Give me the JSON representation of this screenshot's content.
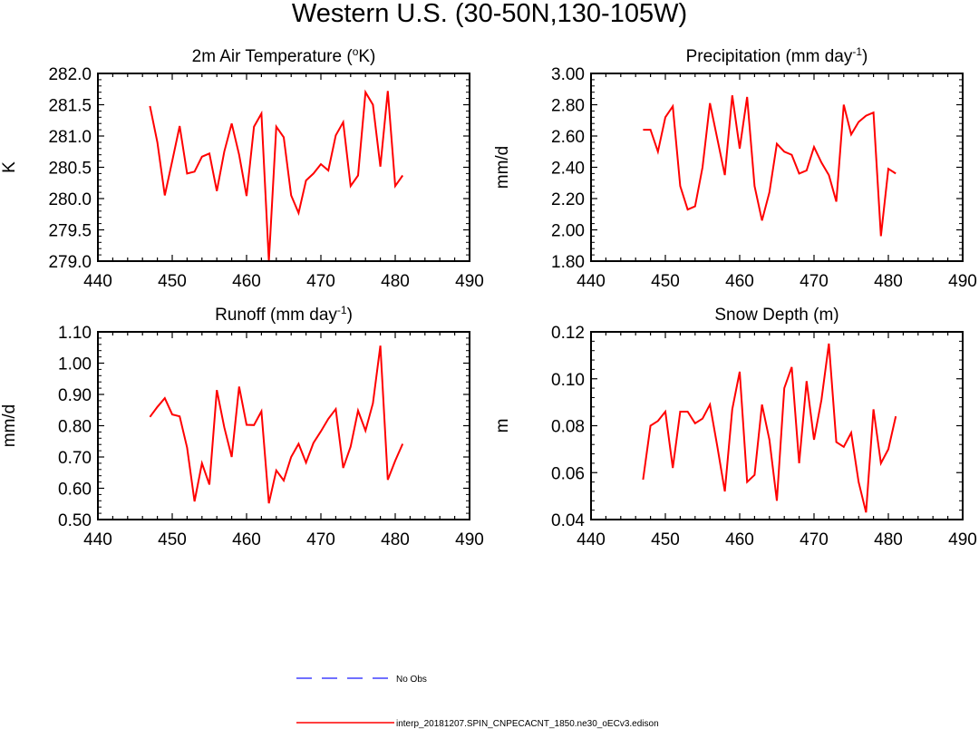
{
  "figure_title": "Western U.S. (30-50N,130-105W)",
  "colors": {
    "model": "#ff0000",
    "obs": "#4040ff",
    "axis": "#000000"
  },
  "legend": {
    "obs_label": "No Obs",
    "model_label": "interp_20181207.SPIN_CNPECACNT_1850.ne30_oECv3.edison"
  },
  "chart_data": [
    {
      "type": "line",
      "title": "2m Air Temperature (°K)",
      "title_parts": {
        "base": "2m Air Temperature (",
        "sup": "o",
        "tail": "K)"
      },
      "ylabel": "K",
      "xlim": [
        440,
        490
      ],
      "xticks": [
        440,
        450,
        460,
        470,
        480,
        490
      ],
      "ylim": [
        279.0,
        282.0
      ],
      "yticks": [
        279.0,
        279.5,
        280.0,
        280.5,
        281.0,
        281.5,
        282.0
      ],
      "ytick_labels": [
        "279.0",
        "279.5",
        "280.0",
        "280.5",
        "281.0",
        "281.5",
        "282.0"
      ],
      "grid": false,
      "series": [
        {
          "name": "interp_20181207.SPIN_CNPECACNT_1850.ne30_oECv3.edison",
          "x": [
            447,
            448,
            449,
            450,
            451,
            452,
            453,
            454,
            455,
            456,
            457,
            458,
            459,
            460,
            461,
            462,
            463,
            464,
            465,
            466,
            467,
            468,
            469,
            470,
            471,
            472,
            473,
            474,
            475,
            476,
            477,
            478,
            479,
            480,
            481
          ],
          "y": [
            281.48,
            280.9,
            280.05,
            280.6,
            281.16,
            280.4,
            280.43,
            280.67,
            280.72,
            280.12,
            280.75,
            281.2,
            280.7,
            280.04,
            281.15,
            281.36,
            279.0,
            281.15,
            280.98,
            280.05,
            279.77,
            280.29,
            280.4,
            280.55,
            280.45,
            281.01,
            281.22,
            280.2,
            280.37,
            281.7,
            281.5,
            280.51,
            281.72,
            280.2,
            280.37
          ]
        }
      ]
    },
    {
      "type": "line",
      "title": "Precipitation (mm day-1)",
      "title_parts": {
        "base": "Precipitation (mm day",
        "sup": "-1",
        "tail": ")"
      },
      "ylabel": "mm/d",
      "xlim": [
        440,
        490
      ],
      "xticks": [
        440,
        450,
        460,
        470,
        480,
        490
      ],
      "ylim": [
        1.8,
        3.0
      ],
      "yticks": [
        1.8,
        2.0,
        2.2,
        2.4,
        2.6,
        2.8,
        3.0
      ],
      "ytick_labels": [
        "1.80",
        "2.00",
        "2.20",
        "2.40",
        "2.60",
        "2.80",
        "3.00"
      ],
      "grid": false,
      "series": [
        {
          "name": "interp_20181207.SPIN_CNPECACNT_1850.ne30_oECv3.edison",
          "x": [
            447,
            448,
            449,
            450,
            451,
            452,
            453,
            454,
            455,
            456,
            457,
            458,
            459,
            460,
            461,
            462,
            463,
            464,
            465,
            466,
            467,
            468,
            469,
            470,
            471,
            472,
            473,
            474,
            475,
            476,
            477,
            478,
            479,
            480,
            481
          ],
          "y": [
            2.64,
            2.64,
            2.5,
            2.72,
            2.79,
            2.28,
            2.13,
            2.15,
            2.4,
            2.81,
            2.58,
            2.35,
            2.86,
            2.52,
            2.85,
            2.28,
            2.06,
            2.24,
            2.55,
            2.5,
            2.48,
            2.36,
            2.38,
            2.53,
            2.43,
            2.35,
            2.18,
            2.8,
            2.61,
            2.69,
            2.73,
            2.75,
            1.96,
            2.39,
            2.36
          ]
        }
      ]
    },
    {
      "type": "line",
      "title": "Runoff (mm day-1)",
      "title_parts": {
        "base": "Runoff (mm day",
        "sup": "-1",
        "tail": ")"
      },
      "ylabel": "mm/d",
      "xlim": [
        440,
        490
      ],
      "xticks": [
        440,
        450,
        460,
        470,
        480,
        490
      ],
      "ylim": [
        0.5,
        1.1
      ],
      "yticks": [
        0.5,
        0.6,
        0.7,
        0.8,
        0.9,
        1.0,
        1.1
      ],
      "ytick_labels": [
        "0.50",
        "0.60",
        "0.70",
        "0.80",
        "0.90",
        "1.00",
        "1.10"
      ],
      "grid": false,
      "series": [
        {
          "name": "interp_20181207.SPIN_CNPECACNT_1850.ne30_oECv3.edison",
          "x": [
            447,
            448,
            449,
            450,
            451,
            452,
            453,
            454,
            455,
            456,
            457,
            458,
            459,
            460,
            461,
            462,
            463,
            464,
            465,
            466,
            467,
            468,
            469,
            470,
            471,
            472,
            473,
            474,
            475,
            476,
            477,
            478,
            479,
            480,
            481
          ],
          "y": [
            0.828,
            0.86,
            0.888,
            0.836,
            0.83,
            0.73,
            0.558,
            0.68,
            0.612,
            0.914,
            0.795,
            0.7,
            0.925,
            0.803,
            0.802,
            0.846,
            0.552,
            0.657,
            0.625,
            0.7,
            0.742,
            0.682,
            0.745,
            0.782,
            0.822,
            0.853,
            0.665,
            0.733,
            0.848,
            0.784,
            0.872,
            1.056,
            0.627,
            0.688,
            0.742
          ]
        }
      ]
    },
    {
      "type": "line",
      "title": "Snow Depth (m)",
      "title_parts": {
        "base": "Snow Depth (m)",
        "sup": "",
        "tail": ""
      },
      "ylabel": "m",
      "xlim": [
        440,
        490
      ],
      "xticks": [
        440,
        450,
        460,
        470,
        480,
        490
      ],
      "ylim": [
        0.04,
        0.12
      ],
      "yticks": [
        0.04,
        0.06,
        0.08,
        0.1,
        0.12
      ],
      "ytick_labels": [
        "0.04",
        "0.06",
        "0.08",
        "0.10",
        "0.12"
      ],
      "grid": false,
      "series": [
        {
          "name": "interp_20181207.SPIN_CNPECACNT_1850.ne30_oECv3.edison",
          "x": [
            447,
            448,
            449,
            450,
            451,
            452,
            453,
            454,
            455,
            456,
            457,
            458,
            459,
            460,
            461,
            462,
            463,
            464,
            465,
            466,
            467,
            468,
            469,
            470,
            471,
            472,
            473,
            474,
            475,
            476,
            477,
            478,
            479,
            480,
            481
          ],
          "y": [
            0.057,
            0.08,
            0.082,
            0.086,
            0.062,
            0.086,
            0.086,
            0.081,
            0.083,
            0.089,
            0.071,
            0.052,
            0.087,
            0.103,
            0.056,
            0.059,
            0.089,
            0.074,
            0.048,
            0.096,
            0.105,
            0.064,
            0.099,
            0.074,
            0.091,
            0.115,
            0.073,
            0.071,
            0.077,
            0.056,
            0.043,
            0.087,
            0.064,
            0.07,
            0.084
          ]
        }
      ]
    }
  ]
}
